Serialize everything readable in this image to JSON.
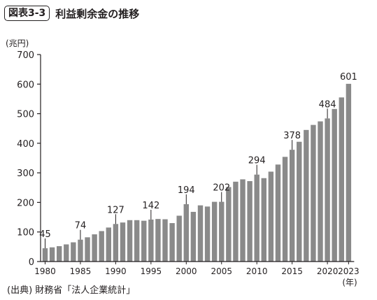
{
  "header": {
    "figure_label": "図表3-3",
    "title": "利益剰余金の推移"
  },
  "footer": {
    "source": "(出典) 財務省「法人企業統計」"
  },
  "chart_data": {
    "type": "bar",
    "title": "利益剰余金の推移",
    "unit_label": "(兆円)",
    "year_unit_label": "(年)",
    "ylim": [
      0,
      700
    ],
    "yticks": [
      0,
      100,
      200,
      300,
      400,
      500,
      600,
      700
    ],
    "grid": false,
    "bar_color": "#8a8a8a",
    "xtick_years": [
      1980,
      1985,
      1990,
      1995,
      2000,
      2005,
      2010,
      2015,
      2020,
      2023
    ],
    "categories": [
      1980,
      1981,
      1982,
      1983,
      1984,
      1985,
      1986,
      1987,
      1988,
      1989,
      1990,
      1991,
      1992,
      1993,
      1994,
      1995,
      1996,
      1997,
      1998,
      1999,
      2000,
      2001,
      2002,
      2003,
      2004,
      2005,
      2006,
      2007,
      2008,
      2009,
      2010,
      2011,
      2012,
      2013,
      2014,
      2015,
      2016,
      2017,
      2018,
      2019,
      2020,
      2021,
      2022,
      2023
    ],
    "values": [
      45,
      48,
      52,
      58,
      65,
      74,
      82,
      92,
      103,
      115,
      127,
      132,
      140,
      140,
      138,
      142,
      144,
      143,
      130,
      155,
      194,
      168,
      190,
      186,
      202,
      202,
      252,
      270,
      278,
      272,
      294,
      282,
      304,
      328,
      354,
      378,
      405,
      445,
      462,
      474,
      484,
      516,
      555,
      601
    ],
    "labeled_values": [
      {
        "year": 1980,
        "label": "45"
      },
      {
        "year": 1985,
        "label": "74"
      },
      {
        "year": 1990,
        "label": "127"
      },
      {
        "year": 1995,
        "label": "142"
      },
      {
        "year": 2000,
        "label": "194"
      },
      {
        "year": 2005,
        "label": "202"
      },
      {
        "year": 2010,
        "label": "294"
      },
      {
        "year": 2015,
        "label": "378"
      },
      {
        "year": 2020,
        "label": "484"
      },
      {
        "year": 2023,
        "label": "601"
      }
    ]
  }
}
